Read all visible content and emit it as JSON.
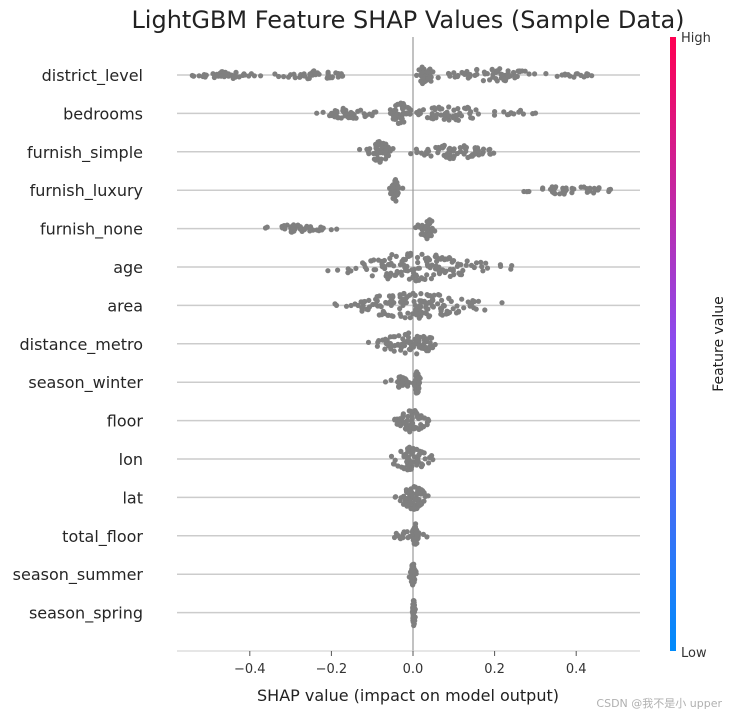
{
  "chart_data": {
    "type": "scatter",
    "subtype": "shap-beeswarm",
    "title": "LightGBM Feature SHAP Values (Sample Data)",
    "xlabel": "SHAP value (impact on model output)",
    "xlim": [
      -0.58,
      0.55
    ],
    "xticks": [
      -0.4,
      -0.2,
      0.0,
      0.2,
      0.4
    ],
    "xtick_labels": [
      "−0.4",
      "−0.2",
      "0.0",
      "0.2",
      "0.4"
    ],
    "point_color": "#7f7f7f",
    "colorbar": {
      "label": "Feature value",
      "high": "High",
      "low": "Low",
      "color_high": "#ff0052",
      "color_low": "#008bfb"
    },
    "features": [
      {
        "name": "district_level",
        "clusters": [
          {
            "center": -0.45,
            "spread": 0.055,
            "halfwidth": 3.5,
            "count": 45
          },
          {
            "center": -0.24,
            "spread": 0.045,
            "halfwidth": 4.5,
            "count": 40
          },
          {
            "center": 0.03,
            "spread": 0.012,
            "halfwidth": 10,
            "count": 30
          },
          {
            "center": 0.2,
            "spread": 0.065,
            "halfwidth": 6.5,
            "count": 65
          },
          {
            "center": 0.4,
            "spread": 0.025,
            "halfwidth": 3,
            "count": 15
          }
        ]
      },
      {
        "name": "bedrooms",
        "clusters": [
          {
            "center": -0.16,
            "spread": 0.035,
            "halfwidth": 5.5,
            "count": 45
          },
          {
            "center": -0.03,
            "spread": 0.012,
            "halfwidth": 12,
            "count": 35
          },
          {
            "center": 0.1,
            "spread": 0.06,
            "halfwidth": 7.5,
            "count": 55
          },
          {
            "center": 0.26,
            "spread": 0.02,
            "halfwidth": 3,
            "count": 10
          }
        ]
      },
      {
        "name": "furnish_simple",
        "clusters": [
          {
            "center": -0.08,
            "spread": 0.015,
            "halfwidth": 11,
            "count": 45
          },
          {
            "center": 0.1,
            "spread": 0.05,
            "halfwidth": 7,
            "count": 70
          }
        ]
      },
      {
        "name": "furnish_luxury",
        "clusters": [
          {
            "center": -0.045,
            "spread": 0.006,
            "halfwidth": 12,
            "count": 40
          },
          {
            "center": 0.38,
            "spread": 0.065,
            "halfwidth": 4,
            "count": 45
          }
        ]
      },
      {
        "name": "furnish_none",
        "clusters": [
          {
            "center": -0.285,
            "spread": 0.04,
            "halfwidth": 4,
            "count": 45
          },
          {
            "center": 0.035,
            "spread": 0.01,
            "halfwidth": 12,
            "count": 40
          }
        ]
      },
      {
        "name": "age",
        "clusters": [
          {
            "center": 0.0,
            "spread": 0.09,
            "halfwidth": 14,
            "count": 140
          }
        ]
      },
      {
        "name": "area",
        "clusters": [
          {
            "center": 0.0,
            "spread": 0.09,
            "halfwidth": 13,
            "count": 140
          }
        ]
      },
      {
        "name": "distance_metro",
        "clusters": [
          {
            "center": -0.01,
            "spread": 0.04,
            "halfwidth": 11,
            "count": 80
          }
        ]
      },
      {
        "name": "season_winter",
        "clusters": [
          {
            "center": -0.025,
            "spread": 0.015,
            "halfwidth": 6,
            "count": 30
          },
          {
            "center": 0.01,
            "spread": 0.004,
            "halfwidth": 12,
            "count": 30
          }
        ]
      },
      {
        "name": "floor",
        "clusters": [
          {
            "center": 0.0,
            "spread": 0.02,
            "halfwidth": 12,
            "count": 65
          }
        ]
      },
      {
        "name": "lon",
        "clusters": [
          {
            "center": -0.005,
            "spread": 0.025,
            "halfwidth": 12,
            "count": 65
          }
        ]
      },
      {
        "name": "lat",
        "clusters": [
          {
            "center": 0.0,
            "spread": 0.018,
            "halfwidth": 13,
            "count": 65
          }
        ]
      },
      {
        "name": "total_floor",
        "clusters": [
          {
            "center": -0.01,
            "spread": 0.02,
            "halfwidth": 5,
            "count": 20
          },
          {
            "center": 0.006,
            "spread": 0.004,
            "halfwidth": 12,
            "count": 35
          }
        ]
      },
      {
        "name": "season_summer",
        "clusters": [
          {
            "center": 0.0,
            "spread": 0.003,
            "halfwidth": 13,
            "count": 40
          }
        ]
      },
      {
        "name": "season_spring",
        "clusters": [
          {
            "center": 0.002,
            "spread": 0.002,
            "halfwidth": 13,
            "count": 40
          }
        ]
      }
    ]
  },
  "watermark": "CSDN @我不是小 upper"
}
